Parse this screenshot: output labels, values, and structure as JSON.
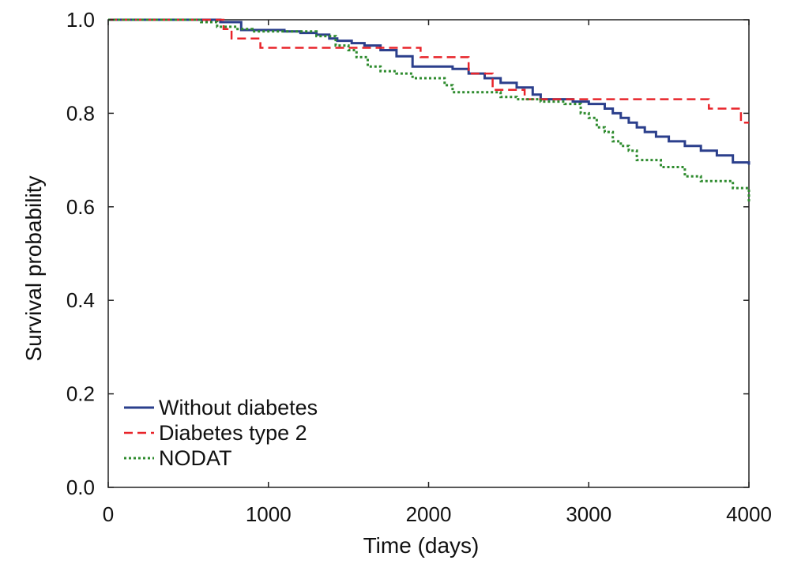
{
  "chart_data": {
    "type": "line",
    "title": "",
    "xlabel": "Time (days)",
    "ylabel": "Survival probability",
    "xlim": [
      0,
      4000
    ],
    "ylim": [
      0.0,
      1.0
    ],
    "x_ticks": [
      0,
      1000,
      2000,
      3000,
      4000
    ],
    "x_tick_labels": [
      "0",
      "1000",
      "2000",
      "3000",
      "4000"
    ],
    "y_ticks": [
      0.0,
      0.2,
      0.4,
      0.6,
      0.8,
      1.0
    ],
    "y_tick_labels": [
      "0.0",
      "0.2",
      "0.4",
      "0.6",
      "0.8",
      "1.0"
    ],
    "grid": false,
    "step": true,
    "legend_position": "bottom-left",
    "series": [
      {
        "name": "Without diabetes",
        "color": "#2b3f8c",
        "dash": "solid",
        "x": [
          0,
          700,
          830,
          1100,
          1200,
          1300,
          1380,
          1430,
          1520,
          1600,
          1700,
          1800,
          1900,
          2150,
          2250,
          2350,
          2450,
          2550,
          2650,
          2700,
          2800,
          2900,
          3000,
          3100,
          3150,
          3200,
          3250,
          3300,
          3350,
          3420,
          3500,
          3600,
          3700,
          3800,
          3900,
          4000
        ],
        "y": [
          1.0,
          0.995,
          0.978,
          0.975,
          0.972,
          0.968,
          0.96,
          0.955,
          0.95,
          0.945,
          0.935,
          0.922,
          0.9,
          0.895,
          0.885,
          0.875,
          0.865,
          0.855,
          0.84,
          0.83,
          0.83,
          0.825,
          0.82,
          0.81,
          0.8,
          0.79,
          0.78,
          0.77,
          0.76,
          0.75,
          0.74,
          0.73,
          0.72,
          0.71,
          0.695,
          0.69
        ]
      },
      {
        "name": "Diabetes type 2",
        "color": "#e8242a",
        "dash": "dashed",
        "x": [
          0,
          720,
          770,
          950,
          1400,
          1950,
          2250,
          2400,
          2600,
          2950,
          3750,
          3950,
          4000
        ],
        "y": [
          1.0,
          0.98,
          0.96,
          0.94,
          0.94,
          0.92,
          0.885,
          0.85,
          0.83,
          0.83,
          0.81,
          0.78,
          0.78
        ]
      },
      {
        "name": "NODAT",
        "color": "#2e8b2e",
        "dash": "dotted",
        "x": [
          0,
          580,
          680,
          800,
          900,
          1100,
          1300,
          1420,
          1500,
          1550,
          1620,
          1650,
          1700,
          1800,
          1900,
          2100,
          2150,
          2450,
          2550,
          2700,
          2850,
          2950,
          3000,
          3050,
          3100,
          3150,
          3200,
          3250,
          3300,
          3450,
          3600,
          3700,
          3900,
          4000
        ],
        "y": [
          1.0,
          0.995,
          0.985,
          0.98,
          0.975,
          0.975,
          0.965,
          0.945,
          0.935,
          0.92,
          0.9,
          0.9,
          0.89,
          0.885,
          0.875,
          0.86,
          0.845,
          0.835,
          0.83,
          0.825,
          0.82,
          0.8,
          0.79,
          0.77,
          0.76,
          0.74,
          0.73,
          0.72,
          0.7,
          0.685,
          0.665,
          0.655,
          0.64,
          0.61
        ]
      }
    ]
  }
}
